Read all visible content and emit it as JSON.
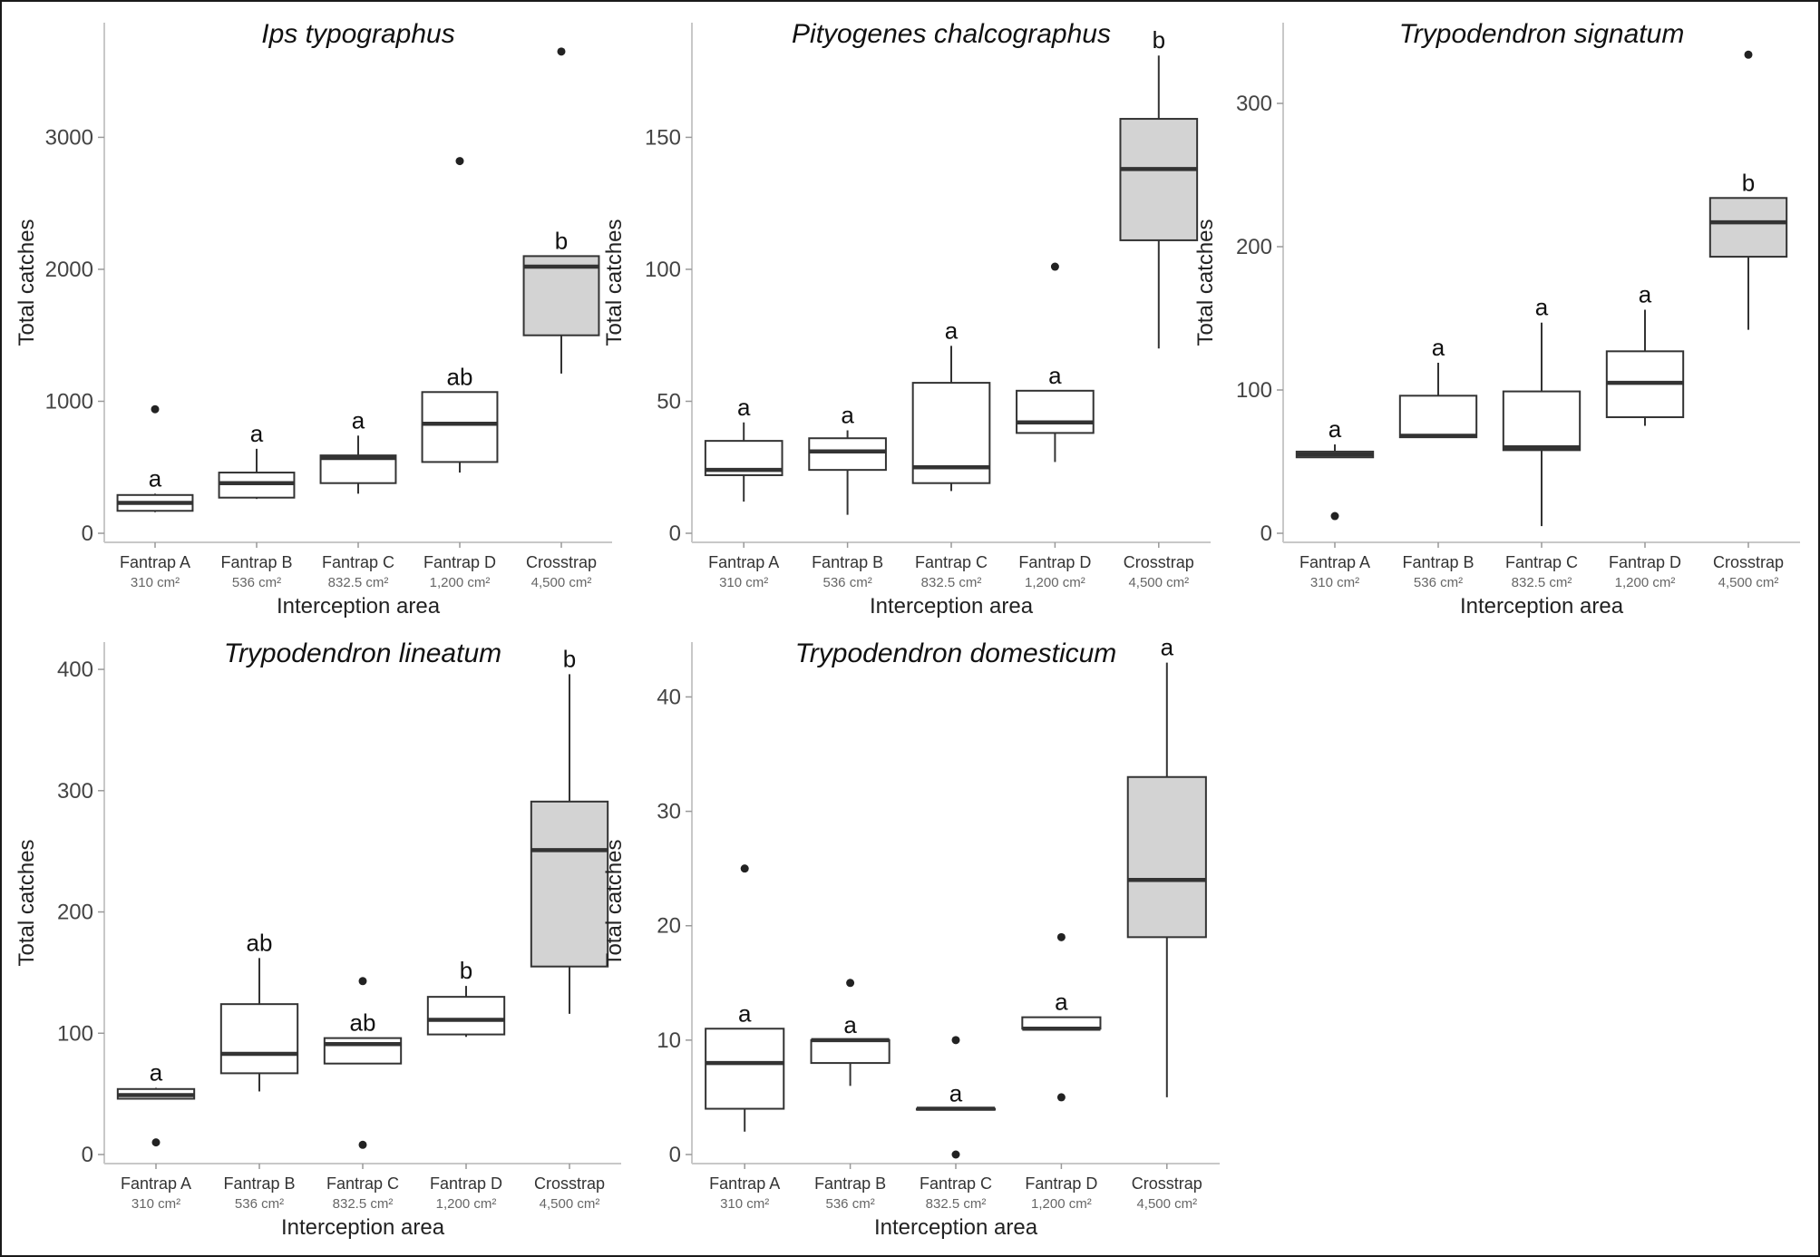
{
  "chart_data": [
    {
      "type": "boxplot",
      "title": "Ips typographus",
      "xlabel": "Interception area",
      "ylabel": "Total catches",
      "ylim": [
        0,
        3800
      ],
      "yticks": [
        0,
        1000,
        2000,
        3000
      ],
      "categories": [
        {
          "name": "Fantrap A",
          "area": "310 cm²"
        },
        {
          "name": "Fantrap B",
          "area": "536 cm²"
        },
        {
          "name": "Fantrap C",
          "area": "832.5 cm²"
        },
        {
          "name": "Fantrap D",
          "area": "1,200 cm²"
        },
        {
          "name": "Crosstrap",
          "area": "4,500 cm²"
        }
      ],
      "boxes": [
        {
          "min": 160,
          "q1": 170,
          "median": 230,
          "q3": 290,
          "max": 300,
          "outliers": [
            940
          ],
          "letter": "a",
          "fill": "#ffffff"
        },
        {
          "min": 260,
          "q1": 270,
          "median": 380,
          "q3": 460,
          "max": 640,
          "outliers": [],
          "letter": "a",
          "fill": "#ffffff"
        },
        {
          "min": 300,
          "q1": 380,
          "median": 570,
          "q3": 590,
          "max": 740,
          "outliers": [],
          "letter": "a",
          "fill": "#ffffff"
        },
        {
          "min": 460,
          "q1": 540,
          "median": 830,
          "q3": 1070,
          "max": 1070,
          "outliers": [
            2820
          ],
          "letter": "ab",
          "fill": "#ffffff"
        },
        {
          "min": 1210,
          "q1": 1500,
          "median": 2020,
          "q3": 2100,
          "max": 2100,
          "outliers": [
            3650
          ],
          "letter": "b",
          "fill": "#d3d3d3"
        }
      ]
    },
    {
      "type": "boxplot",
      "title": "Pityogenes chalcographus",
      "xlabel": "Interception area",
      "ylabel": "Total catches",
      "ylim": [
        0,
        190
      ],
      "yticks": [
        0,
        50,
        100,
        150
      ],
      "categories": [
        {
          "name": "Fantrap A",
          "area": "310 cm²"
        },
        {
          "name": "Fantrap B",
          "area": "536 cm²"
        },
        {
          "name": "Fantrap C",
          "area": "832.5 cm²"
        },
        {
          "name": "Fantrap D",
          "area": "1,200 cm²"
        },
        {
          "name": "Crosstrap",
          "area": "4,500 cm²"
        }
      ],
      "boxes": [
        {
          "min": 12,
          "q1": 22,
          "median": 24,
          "q3": 35,
          "max": 42,
          "outliers": [],
          "letter": "a",
          "fill": "#ffffff"
        },
        {
          "min": 7,
          "q1": 24,
          "median": 31,
          "q3": 36,
          "max": 39,
          "outliers": [],
          "letter": "a",
          "fill": "#ffffff"
        },
        {
          "min": 16,
          "q1": 19,
          "median": 25,
          "q3": 57,
          "max": 71,
          "outliers": [],
          "letter": "a",
          "fill": "#ffffff"
        },
        {
          "min": 27,
          "q1": 38,
          "median": 42,
          "q3": 54,
          "max": 54,
          "outliers": [
            101
          ],
          "letter": "a",
          "fill": "#ffffff"
        },
        {
          "min": 70,
          "q1": 111,
          "median": 138,
          "q3": 157,
          "max": 181,
          "outliers": [],
          "letter": "b",
          "fill": "#d3d3d3"
        }
      ]
    },
    {
      "type": "boxplot",
      "title": "Trypodendron signatum",
      "xlabel": "Interception area",
      "ylabel": "Total catches",
      "ylim": [
        0,
        350
      ],
      "yticks": [
        0,
        100,
        200,
        300
      ],
      "categories": [
        {
          "name": "Fantrap A",
          "area": "310 cm²"
        },
        {
          "name": "Fantrap B",
          "area": "536 cm²"
        },
        {
          "name": "Fantrap C",
          "area": "832.5 cm²"
        },
        {
          "name": "Fantrap D",
          "area": "1,200 cm²"
        },
        {
          "name": "Crosstrap",
          "area": "4,500 cm²"
        }
      ],
      "boxes": [
        {
          "min": 53,
          "q1": 53,
          "median": 55,
          "q3": 57,
          "max": 62,
          "outliers": [
            12
          ],
          "letter": "a",
          "fill": "#ffffff"
        },
        {
          "min": 67,
          "q1": 67,
          "median": 68,
          "q3": 96,
          "max": 119,
          "outliers": [],
          "letter": "a",
          "fill": "#ffffff"
        },
        {
          "min": 5,
          "q1": 58,
          "median": 60,
          "q3": 99,
          "max": 147,
          "outliers": [],
          "letter": "a",
          "fill": "#ffffff"
        },
        {
          "min": 75,
          "q1": 81,
          "median": 105,
          "q3": 127,
          "max": 156,
          "outliers": [],
          "letter": "a",
          "fill": "#ffffff"
        },
        {
          "min": 142,
          "q1": 193,
          "median": 217,
          "q3": 234,
          "max": 234,
          "outliers": [
            334
          ],
          "letter": "b",
          "fill": "#d3d3d3"
        }
      ]
    },
    {
      "type": "boxplot",
      "title": "Trypodendron lineatum",
      "xlabel": "Interception area",
      "ylabel": "Total catches",
      "ylim": [
        0,
        415
      ],
      "yticks": [
        0,
        100,
        200,
        300,
        400
      ],
      "categories": [
        {
          "name": "Fantrap A",
          "area": "310 cm²"
        },
        {
          "name": "Fantrap B",
          "area": "536 cm²"
        },
        {
          "name": "Fantrap C",
          "area": "832.5 cm²"
        },
        {
          "name": "Fantrap D",
          "area": "1,200 cm²"
        },
        {
          "name": "Crosstrap",
          "area": "4,500 cm²"
        }
      ],
      "boxes": [
        {
          "min": 46,
          "q1": 46,
          "median": 49,
          "q3": 54,
          "max": 55,
          "outliers": [
            10
          ],
          "letter": "a",
          "fill": "#ffffff"
        },
        {
          "min": 52,
          "q1": 67,
          "median": 83,
          "q3": 124,
          "max": 162,
          "outliers": [],
          "letter": "ab",
          "fill": "#ffffff"
        },
        {
          "min": 75,
          "q1": 75,
          "median": 91,
          "q3": 96,
          "max": 96,
          "outliers": [
            143,
            8
          ],
          "letter": "ab",
          "fill": "#ffffff"
        },
        {
          "min": 97,
          "q1": 99,
          "median": 111,
          "q3": 130,
          "max": 139,
          "outliers": [],
          "letter": "b",
          "fill": "#ffffff"
        },
        {
          "min": 116,
          "q1": 155,
          "median": 251,
          "q3": 291,
          "max": 396,
          "outliers": [],
          "letter": "b",
          "fill": "#d3d3d3"
        }
      ]
    },
    {
      "type": "boxplot",
      "title": "Trypodendron domesticum",
      "xlabel": "Interception area",
      "ylabel": "Total catches",
      "ylim": [
        0,
        44
      ],
      "yticks": [
        0,
        10,
        20,
        30,
        40
      ],
      "categories": [
        {
          "name": "Fantrap A",
          "area": "310 cm²"
        },
        {
          "name": "Fantrap B",
          "area": "536 cm²"
        },
        {
          "name": "Fantrap C",
          "area": "832.5 cm²"
        },
        {
          "name": "Fantrap D",
          "area": "1,200 cm²"
        },
        {
          "name": "Crosstrap",
          "area": "4,500 cm²"
        }
      ],
      "boxes": [
        {
          "min": 2,
          "q1": 4,
          "median": 8,
          "q3": 11,
          "max": 11,
          "outliers": [
            25
          ],
          "letter": "a",
          "fill": "#ffffff"
        },
        {
          "min": 6,
          "q1": 8,
          "median": 10,
          "q3": 10,
          "max": 10,
          "outliers": [
            15
          ],
          "letter": "a",
          "fill": "#ffffff"
        },
        {
          "min": 4,
          "q1": 4,
          "median": 4,
          "q3": 4,
          "max": 4,
          "outliers": [
            10,
            0
          ],
          "letter": "a",
          "fill": "#ffffff"
        },
        {
          "min": 11,
          "q1": 11,
          "median": 11,
          "q3": 12,
          "max": 12,
          "outliers": [
            19,
            5
          ],
          "letter": "a",
          "fill": "#ffffff"
        },
        {
          "min": 5,
          "q1": 19,
          "median": 24,
          "q3": 33,
          "max": 43,
          "outliers": [],
          "letter": "a",
          "fill": "#d3d3d3"
        }
      ]
    }
  ]
}
